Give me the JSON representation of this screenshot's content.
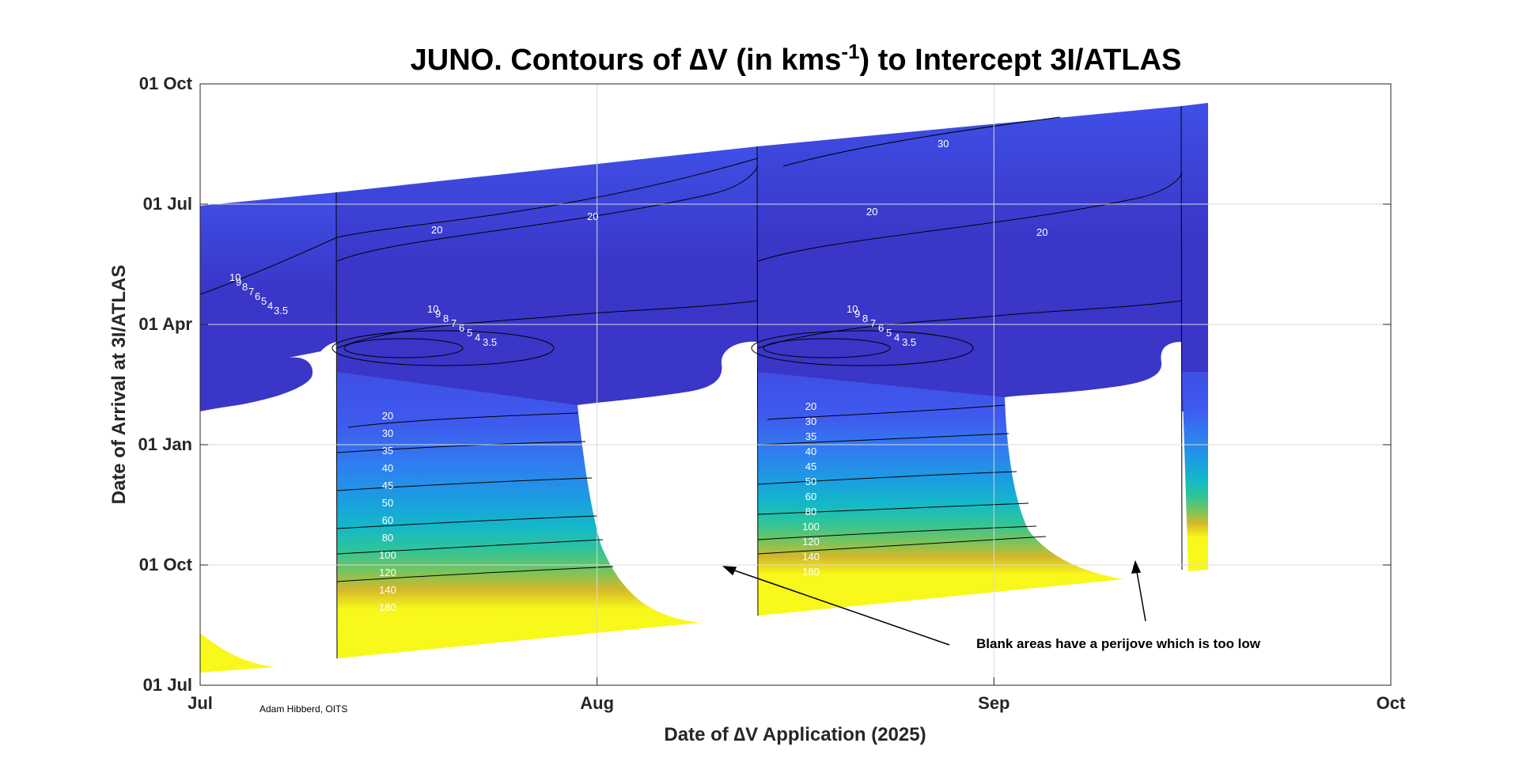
{
  "chart_data": {
    "type": "heatmap",
    "title_main": "JUNO. Contours of ",
    "title_symbol": "∆",
    "title_after_symbol": "V (in kms",
    "title_superscript": "-1",
    "title_end": ") to Intercept 3I/ATLAS",
    "xlabel_symbol": "∆",
    "xlabel_pre": "Date of ",
    "xlabel_post": "V Application (2025)",
    "ylabel": "Date of Arrival at 3I/ATLAS",
    "x_ticks": [
      "Jul",
      "Aug",
      "Sep",
      "Oct"
    ],
    "y_ticks": [
      "01 Jul",
      "01 Oct",
      "01 Jan",
      "01 Apr",
      "01 Jul",
      "01 Oct"
    ],
    "x_range": [
      "2025-07-01",
      "2025-10-01"
    ],
    "y_range": [
      "2025-07-01",
      "2026-10-01"
    ],
    "grid": true,
    "colormap": [
      "#3a36c7",
      "#3f4fe6",
      "#2f7ff0",
      "#1a9fe0",
      "#14b8c8",
      "#2ec49a",
      "#7cc45a",
      "#d4b82a",
      "#f8f81a"
    ],
    "contour_levels": [
      3.5,
      4,
      5,
      6,
      7,
      8,
      9,
      10,
      20,
      30,
      35,
      40,
      45,
      50,
      60,
      80,
      100,
      120,
      140,
      180
    ],
    "bands": [
      {
        "x0": "2025-07-01",
        "x1": "2025-07-12",
        "ytop0": "2026-07-01",
        "ytop1": "2026-07-14",
        "ybot": "2026-01-24"
      },
      {
        "x0": "2025-07-12",
        "x1": "2025-08-12",
        "ytop0": "2026-07-14",
        "ytop1": "2026-08-20",
        "ybot": "2025-09-20"
      },
      {
        "x0": "2025-08-12",
        "x1": "2025-09-15",
        "ytop0": "2026-08-20",
        "ytop1": "2026-09-24",
        "ybot": "2025-09-26"
      },
      {
        "x0": "2025-09-15",
        "x1": "2025-09-18",
        "ytop0": "2026-09-24",
        "ytop1": "2026-09-26",
        "ybot": "2025-10-05"
      }
    ],
    "annotation": "Blank areas have a perijove which is too low",
    "credit": "Adam Hibberd, OITS",
    "inline_labels": [
      "20",
      "30",
      "35",
      "40",
      "45",
      "50",
      "60",
      "80",
      "100",
      "120",
      "140",
      "180",
      "10",
      "9",
      "8",
      "7",
      "6",
      "5",
      "4",
      "3.5"
    ]
  }
}
